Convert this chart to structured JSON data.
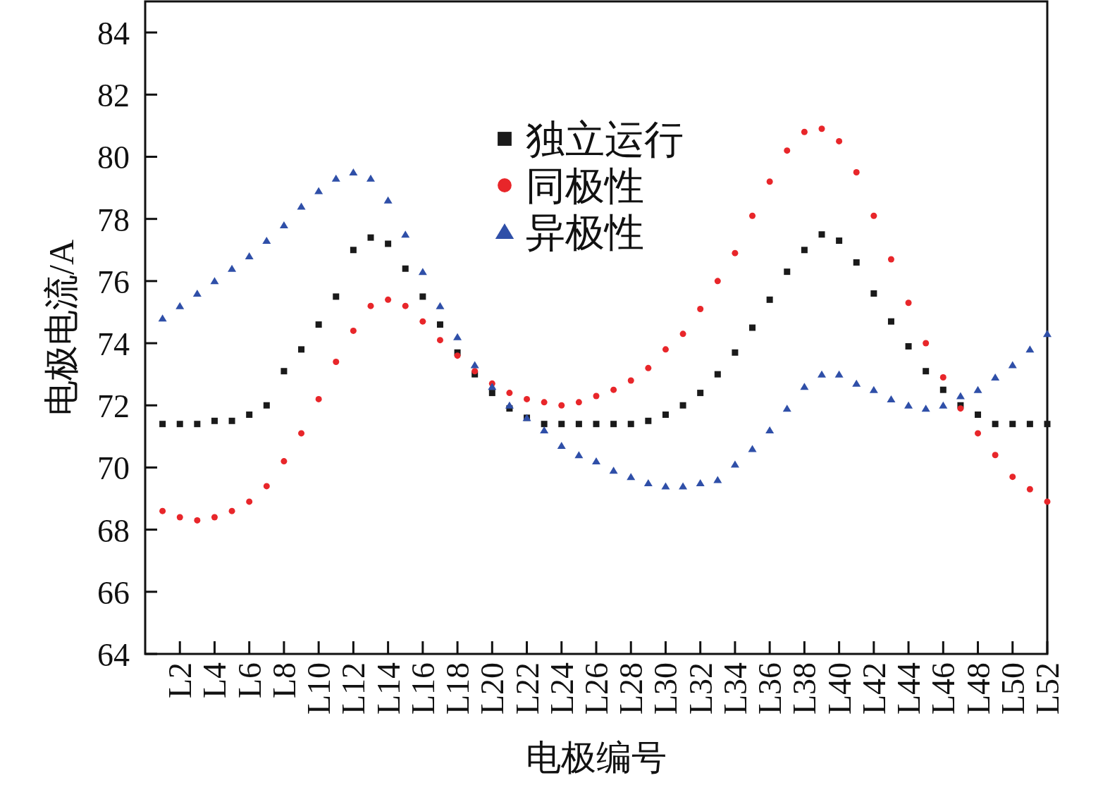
{
  "chart_data": {
    "type": "scatter",
    "xlabel": "电极编号",
    "ylabel": "电极电流/A",
    "categories": [
      null,
      "L2",
      null,
      "L4",
      null,
      "L6",
      null,
      "L8",
      null,
      "L10",
      null,
      "L12",
      null,
      "L14",
      null,
      "L16",
      null,
      "L18",
      null,
      "L20",
      null,
      "L22",
      null,
      "L24",
      null,
      "L26",
      null,
      "L28",
      null,
      "L30",
      null,
      "L32",
      null,
      "L34",
      null,
      "L36",
      null,
      "L38",
      null,
      "L40",
      null,
      "L42",
      null,
      "L44",
      null,
      "L46",
      null,
      "L48",
      null,
      "L50",
      null,
      "L52"
    ],
    "ylim": [
      64,
      85
    ],
    "yticks": [
      64,
      66,
      68,
      70,
      72,
      74,
      76,
      78,
      80,
      82,
      84
    ],
    "grid": false,
    "legend": "top",
    "series": [
      {
        "name": "独立运行",
        "color": "#1a1a1a",
        "marker": "square",
        "values": [
          71.4,
          71.4,
          71.4,
          71.5,
          71.5,
          71.7,
          72.0,
          73.1,
          73.8,
          74.6,
          75.5,
          77.0,
          77.4,
          77.2,
          76.4,
          75.5,
          74.6,
          73.7,
          73.0,
          72.4,
          71.9,
          71.6,
          71.4,
          71.4,
          71.4,
          71.4,
          71.4,
          71.4,
          71.5,
          71.7,
          72.0,
          72.4,
          73.0,
          73.7,
          74.5,
          75.4,
          76.3,
          77.0,
          77.5,
          77.3,
          76.6,
          75.6,
          74.7,
          73.9,
          73.1,
          72.5,
          72.0,
          71.7,
          71.4,
          71.4,
          71.4,
          71.4
        ]
      },
      {
        "name": "同极性",
        "color": "#e8262a",
        "marker": "circle",
        "values": [
          68.6,
          68.4,
          68.3,
          68.4,
          68.6,
          68.9,
          69.4,
          70.2,
          71.1,
          72.2,
          73.4,
          74.4,
          75.2,
          75.4,
          75.2,
          74.7,
          74.1,
          73.6,
          73.1,
          72.7,
          72.4,
          72.2,
          72.1,
          72.0,
          72.1,
          72.3,
          72.5,
          72.8,
          73.2,
          73.8,
          74.3,
          75.1,
          76.0,
          76.9,
          78.1,
          79.2,
          80.2,
          80.8,
          80.9,
          80.5,
          79.5,
          78.1,
          76.7,
          75.3,
          74.0,
          72.9,
          71.9,
          71.1,
          70.4,
          69.7,
          69.3,
          68.9
        ]
      },
      {
        "name": "异极性",
        "color": "#2f4fa8",
        "marker": "triangle",
        "values": [
          74.8,
          75.2,
          75.6,
          76.0,
          76.4,
          76.8,
          77.3,
          77.8,
          78.4,
          78.9,
          79.3,
          79.5,
          79.3,
          78.6,
          77.5,
          76.3,
          75.2,
          74.2,
          73.3,
          72.6,
          72.0,
          71.6,
          71.2,
          70.7,
          70.4,
          70.2,
          69.9,
          69.7,
          69.5,
          69.4,
          69.4,
          69.5,
          69.6,
          70.1,
          70.6,
          71.2,
          71.9,
          72.6,
          73.0,
          73.0,
          72.7,
          72.5,
          72.2,
          72.0,
          71.9,
          72.0,
          72.3,
          72.5,
          72.9,
          73.3,
          73.8,
          74.3
        ]
      }
    ]
  }
}
